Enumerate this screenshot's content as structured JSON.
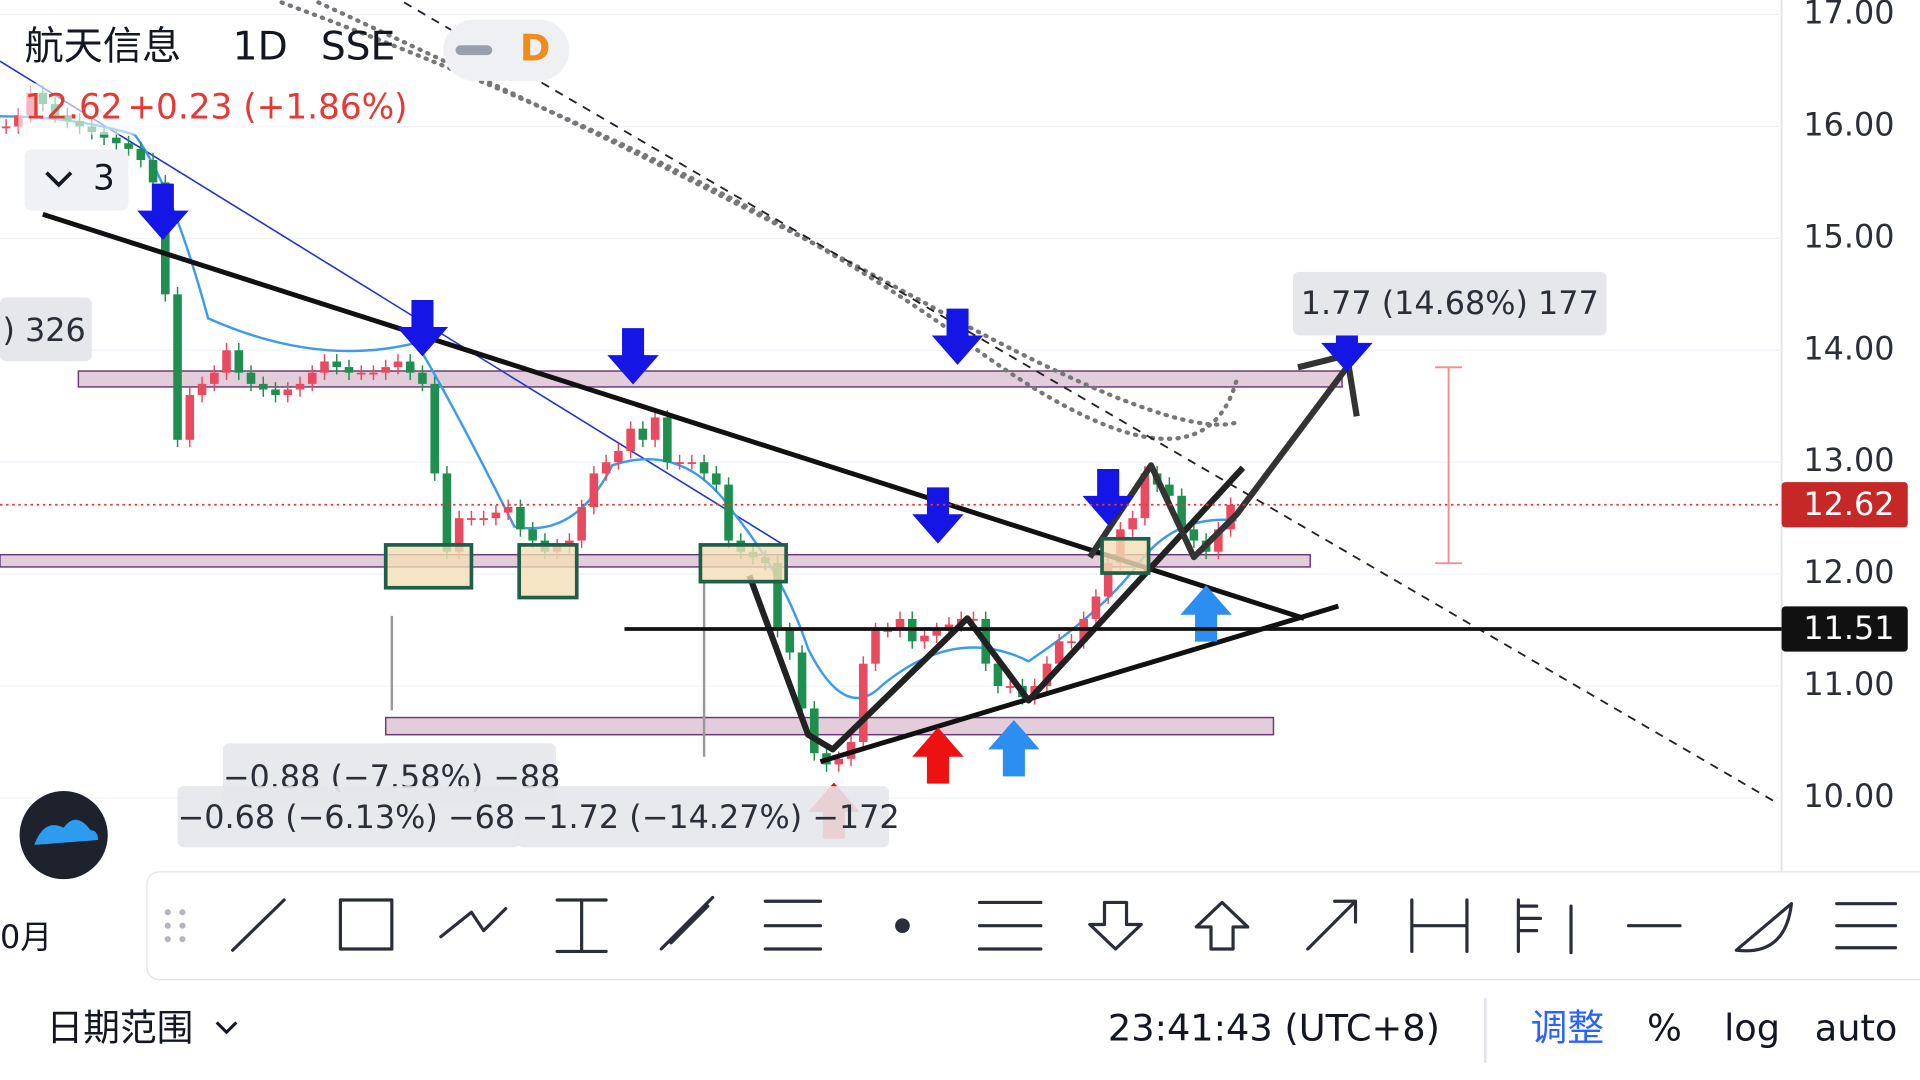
{
  "header": {
    "symbol": "航天信息",
    "interval": "1D",
    "exchange": "SSE",
    "badge": "D",
    "price": "12.62",
    "change": "+0.23 (+1.86%)",
    "indicator_count": "3"
  },
  "price_axis": {
    "ylim": [
      9.34,
      17.13
    ],
    "ticks": [
      {
        "value": 17,
        "label": "17.00"
      },
      {
        "value": 16,
        "label": "16.00"
      },
      {
        "value": 15,
        "label": "15.00"
      },
      {
        "value": 14,
        "label": "14.00"
      },
      {
        "value": 13,
        "label": "13.00"
      },
      {
        "value": 12,
        "label": "12.00"
      },
      {
        "value": 11,
        "label": "11.00"
      },
      {
        "value": 10,
        "label": "10.00"
      }
    ],
    "last_price": {
      "value": 12.62,
      "label": "12.62"
    },
    "line_price": {
      "value": 11.51,
      "label": "11.51"
    }
  },
  "price_series": [
    16.0,
    16.1,
    16.3,
    16.2,
    16.1,
    16.05,
    16.0,
    15.95,
    15.9,
    15.85,
    15.8,
    15.7,
    15.5,
    14.5,
    13.2,
    13.6,
    13.7,
    13.8,
    14.0,
    13.8,
    13.7,
    13.65,
    13.6,
    13.65,
    13.7,
    13.8,
    13.9,
    13.85,
    13.8,
    13.8,
    13.8,
    13.85,
    13.9,
    13.8,
    13.7,
    12.9,
    12.2,
    12.5,
    12.5,
    12.5,
    12.55,
    12.6,
    12.4,
    12.3,
    12.2,
    12.25,
    12.3,
    12.6,
    12.9,
    13.0,
    13.1,
    13.3,
    13.2,
    13.4,
    13.0,
    13.0,
    13.0,
    12.9,
    12.8,
    12.3,
    12.2,
    12.15,
    12.1,
    11.5,
    11.3,
    10.8,
    10.4,
    10.3,
    10.35,
    10.5,
    11.2,
    11.5,
    11.5,
    11.6,
    11.4,
    11.45,
    11.5,
    11.55,
    11.6,
    11.6,
    11.2,
    11.0,
    11.0,
    10.9,
    11.0,
    11.2,
    11.4,
    11.4,
    11.6,
    11.8,
    12.1,
    12.4,
    12.5,
    12.9,
    12.8,
    12.7,
    12.4,
    12.3,
    12.2,
    12.4,
    12.62
  ],
  "annotations": {
    "measure_up": "1.77 (14.68%) 177",
    "measure_left": ") 326",
    "measure_a": "−0.88 (−7.58%) −88",
    "measure_b": "−0.68 (−6.13%) −68",
    "measure_c": "−1.72 (−14.27%) −172"
  },
  "time_axis_label": "0月",
  "bottom_bar": {
    "date_range": "日期范围",
    "time": "23:41:43 (UTC+8)",
    "adjust": "调整",
    "percent": "%",
    "log": "log",
    "auto": "auto"
  }
}
